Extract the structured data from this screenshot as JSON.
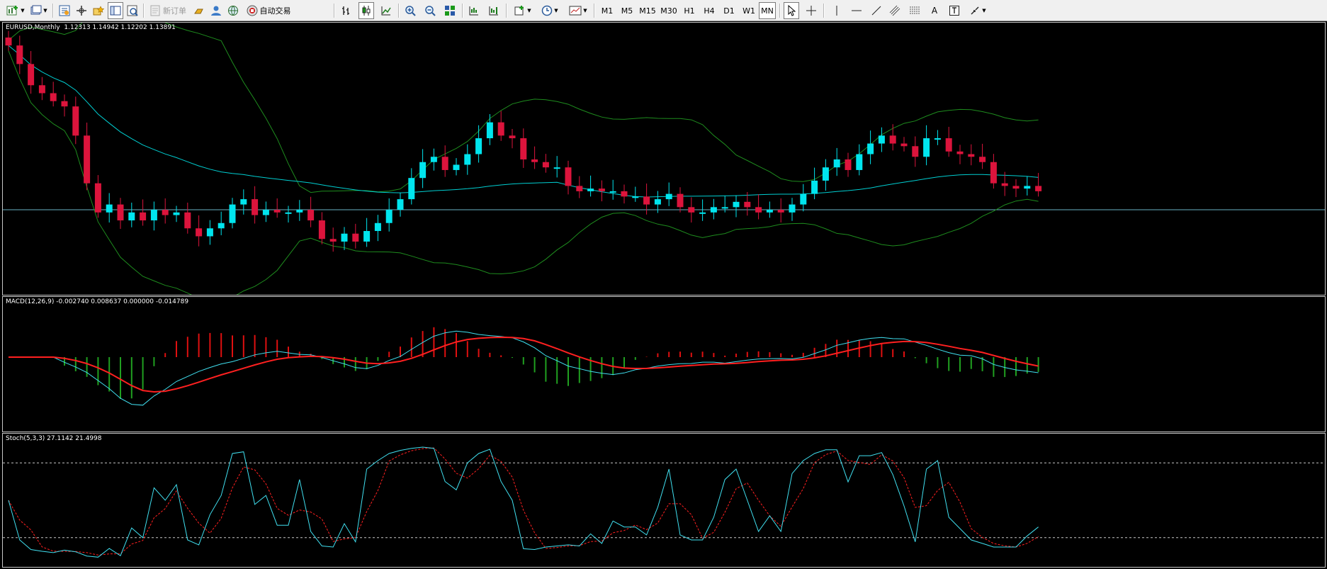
{
  "toolbar": {
    "buttons": [
      {
        "name": "new-chart-button",
        "icon": "new-chart-icon",
        "dropdown": true
      },
      {
        "name": "profiles-button",
        "icon": "profiles-icon",
        "dropdown": true
      },
      {
        "name": "market-watch-button",
        "icon": "market-watch-icon"
      },
      {
        "name": "navigator-button",
        "icon": "navigator-icon"
      },
      {
        "name": "favorites-button",
        "icon": "favorites-icon"
      },
      {
        "name": "terminal-button",
        "icon": "terminal-icon"
      },
      {
        "name": "strategy-tester-button",
        "icon": "strategy-tester-icon"
      }
    ],
    "new_order_label": "新订单",
    "auto_trading_label": "自动交易",
    "timeframes": [
      "M1",
      "M5",
      "M15",
      "M30",
      "H1",
      "H4",
      "D1",
      "W1",
      "MN"
    ],
    "active_timeframe": "MN"
  },
  "main_panel": {
    "symbol": "EURUSD,Monthly",
    "ohlc": "1.12313 1.14942 1.12202 1.13891",
    "colors": {
      "bull": "#00e5ee",
      "bear": "#dc143c",
      "ma": "#00ced1",
      "bands": "#1e8c1e",
      "line": "#6ab2c4"
    }
  },
  "macd_panel": {
    "label": "MACD(12,26,9) -0.002740 0.008637 0.000000 -0.014789"
  },
  "stoch_panel": {
    "label": "Stoch(5,3,3) 27.1142 21.4998"
  },
  "chart_data": [
    {
      "type": "candlestick",
      "title": "EURUSD,Monthly",
      "ohlc_current": [
        1.12313,
        1.14942,
        1.12202,
        1.13891
      ],
      "note": "price values approximated in relative units",
      "close": [
        0.93,
        0.86,
        0.78,
        0.75,
        0.72,
        0.7,
        0.59,
        0.41,
        0.3,
        0.33,
        0.27,
        0.3,
        0.27,
        0.31,
        0.29,
        0.3,
        0.24,
        0.21,
        0.24,
        0.26,
        0.33,
        0.35,
        0.29,
        0.31,
        0.3,
        0.3,
        0.31,
        0.27,
        0.2,
        0.19,
        0.22,
        0.19,
        0.23,
        0.26,
        0.31,
        0.35,
        0.43,
        0.49,
        0.51,
        0.46,
        0.48,
        0.52,
        0.58,
        0.64,
        0.59,
        0.58,
        0.5,
        0.49,
        0.47,
        0.47,
        0.4,
        0.38,
        0.39,
        0.38,
        0.38,
        0.36,
        0.36,
        0.33,
        0.35,
        0.37,
        0.32,
        0.3,
        0.3,
        0.32,
        0.32,
        0.34,
        0.32,
        0.3,
        0.31,
        0.3,
        0.33,
        0.37,
        0.42,
        0.47,
        0.5,
        0.46,
        0.52,
        0.56,
        0.59,
        0.56,
        0.55,
        0.51,
        0.58,
        0.58,
        0.53,
        0.52,
        0.51,
        0.49,
        0.41,
        0.4,
        0.39,
        0.4,
        0.38
      ]
    },
    {
      "type": "bar",
      "name": "MACD(12,26,9)",
      "values": [
        -0.0027,
        0.0086,
        0.0,
        -0.0148
      ]
    },
    {
      "type": "line",
      "name": "Stoch(5,3,3)",
      "ylim": [
        0,
        100
      ],
      "k": [
        27.1142
      ],
      "d": [
        21.4998
      ],
      "levels": [
        80,
        20
      ]
    }
  ]
}
